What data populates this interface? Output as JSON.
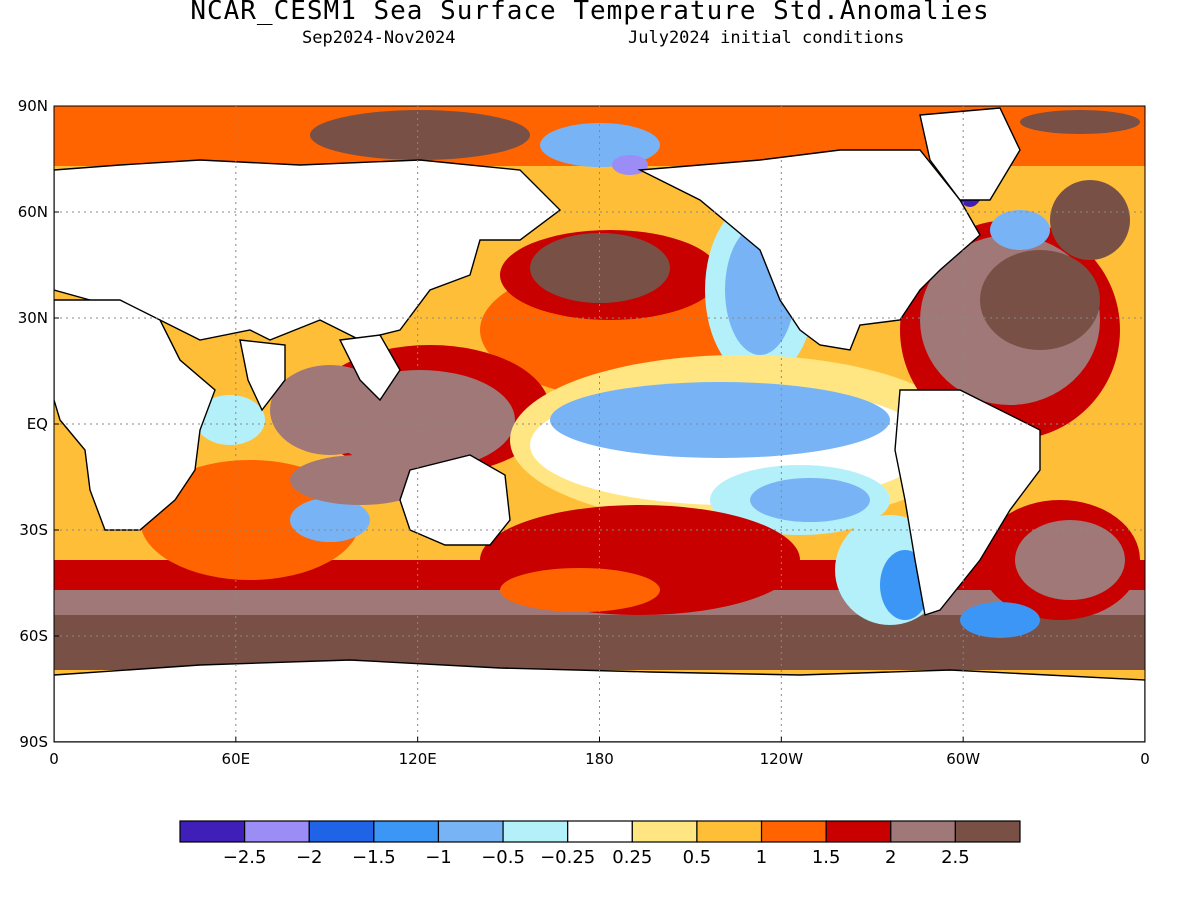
{
  "header": {
    "title": "NCAR_CESM1 Sea Surface Temperature Std.Anomalies",
    "period": "Sep2024-Nov2024",
    "init": "July2024 initial conditions"
  },
  "map": {
    "projection": "equirectangular (cylindrical equidistant)",
    "lon_range": [
      0,
      360
    ],
    "lat_range": [
      -90,
      90
    ],
    "grid": "dotted gray graticule every 60 degrees longitude / 30 degrees latitude",
    "lat_ticks": [
      "90N",
      "60N",
      "30N",
      "EQ",
      "30S",
      "60S",
      "90S"
    ],
    "lon_ticks": [
      "0",
      "60E",
      "120E",
      "180",
      "120W",
      "60W",
      "0"
    ],
    "land_color": "#ffffff"
  },
  "legend": {
    "colors": [
      "#3f1fb8",
      "#9c8cf5",
      "#1f64e6",
      "#3c96f5",
      "#78b4f5",
      "#b4f0fa",
      "#ffffff",
      "#ffe682",
      "#ffbe37",
      "#ff6400",
      "#c80000",
      "#a07878",
      "#785046"
    ],
    "labels": [
      "-2.5",
      "-2",
      "-1.5",
      "-1",
      "-0.5",
      "-0.25",
      "0.25",
      "0.5",
      "1",
      "1.5",
      "2",
      "2.5"
    ]
  }
}
